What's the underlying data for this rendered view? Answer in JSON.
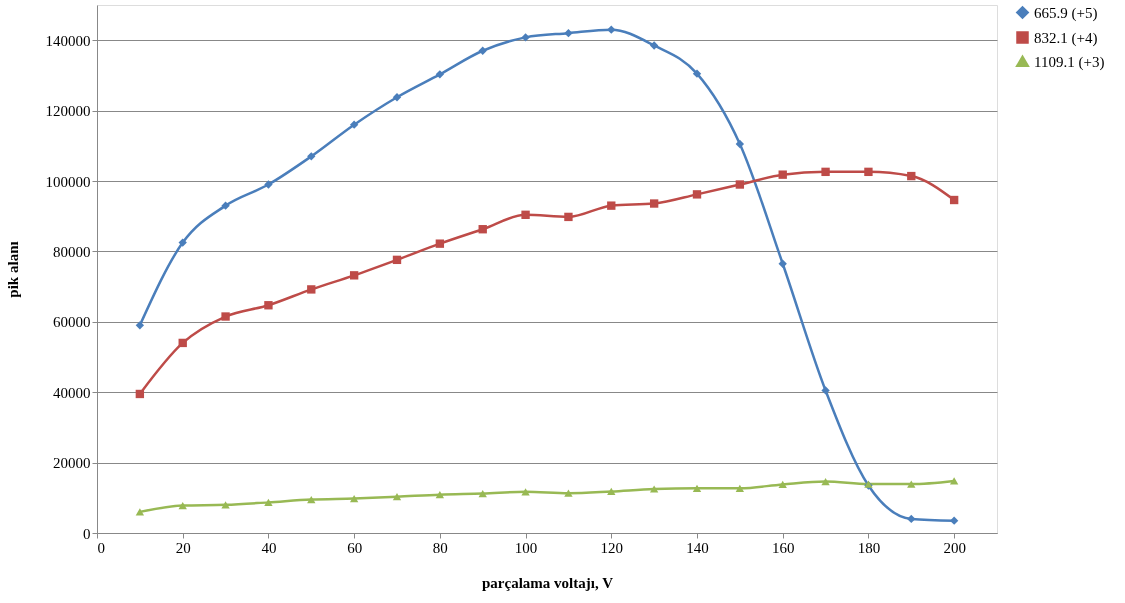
{
  "chart_data": {
    "type": "line",
    "xlabel": "parçalama voltajı, V",
    "ylabel": "pik alanı",
    "x": [
      10,
      20,
      30,
      40,
      50,
      60,
      70,
      80,
      90,
      100,
      110,
      120,
      130,
      140,
      150,
      160,
      170,
      180,
      190,
      200
    ],
    "series": [
      {
        "name": "665.9 (+5)",
        "color": "#4a7ebb",
        "marker": "diamond",
        "values": [
          59000,
          82500,
          93000,
          99000,
          107000,
          116000,
          123800,
          130300,
          137000,
          140800,
          142000,
          143000,
          138500,
          130500,
          110500,
          76500,
          40500,
          13500,
          4000,
          3500
        ]
      },
      {
        "name": "832.1 (+4)",
        "color": "#be4b48",
        "marker": "square",
        "values": [
          39500,
          54000,
          61500,
          64700,
          69200,
          73200,
          77600,
          82200,
          86300,
          90400,
          89800,
          93000,
          93600,
          96200,
          99000,
          101800,
          102600,
          102600,
          101400,
          94600
        ]
      },
      {
        "name": "1109.1 (+3)",
        "color": "#98b954",
        "marker": "triangle",
        "values": [
          6000,
          7800,
          8000,
          8700,
          9500,
          9800,
          10300,
          10900,
          11200,
          11700,
          11300,
          11800,
          12500,
          12700,
          12700,
          13800,
          14600,
          13900,
          13900,
          14800
        ]
      }
    ],
    "xlim": [
      0,
      210
    ],
    "xticks": [
      0,
      20,
      40,
      60,
      80,
      100,
      120,
      140,
      160,
      180,
      200
    ],
    "ylim": [
      0,
      150000
    ],
    "yticks": [
      0,
      20000,
      40000,
      60000,
      80000,
      100000,
      120000,
      140000
    ],
    "grid": "y",
    "legend": "right",
    "line_style": "solid"
  }
}
